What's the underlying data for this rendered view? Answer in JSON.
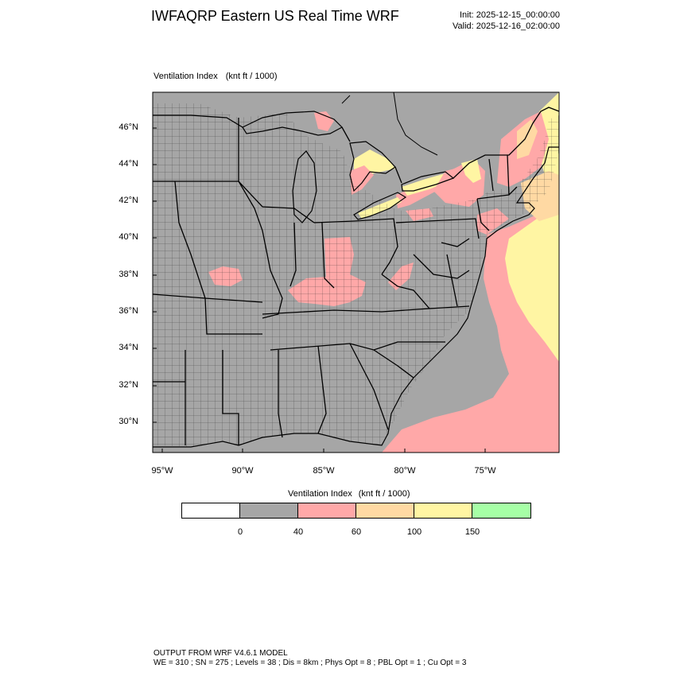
{
  "header": {
    "title": "IWFAQRP Eastern US Real Time WRF",
    "init": "Init: 2025-12-15_00:00:00",
    "valid": "Valid: 2025-12-16_02:00:00"
  },
  "map": {
    "variable": "Ventilation Index",
    "units": "(knt ft / 1000)",
    "lat_labels": [
      "46°N",
      "44°N",
      "42°N",
      "40°N",
      "38°N",
      "36°N",
      "34°N",
      "32°N",
      "30°N"
    ],
    "lon_labels": [
      "95°W",
      "90°W",
      "85°W",
      "80°W",
      "75°W"
    ],
    "colors": {
      "land": "#a6a6a6",
      "water": "#a6a6a6",
      "c40_60": "#ffa8a8",
      "c60_100": "#ffd9a3",
      "c100_150": "#fff5a3",
      "border": "#000000"
    }
  },
  "colorbar": {
    "title": "Ventilation Index",
    "units": "(knt ft / 1000)",
    "colors": [
      "#ffffff",
      "#a6a6a6",
      "#ffa8a8",
      "#ffd9a3",
      "#fff5a3",
      "#a6ffa6"
    ],
    "ticks": [
      "0",
      "40",
      "60",
      "100",
      "150"
    ]
  },
  "footer": {
    "line1": "OUTPUT FROM WRF V4.6.1 MODEL",
    "line2": "WE = 310 ; SN = 275 ; Levels = 38 ; Dis = 8km ; Phys Opt = 8 ; PBL Opt = 1 ; Cu Opt = 3"
  }
}
